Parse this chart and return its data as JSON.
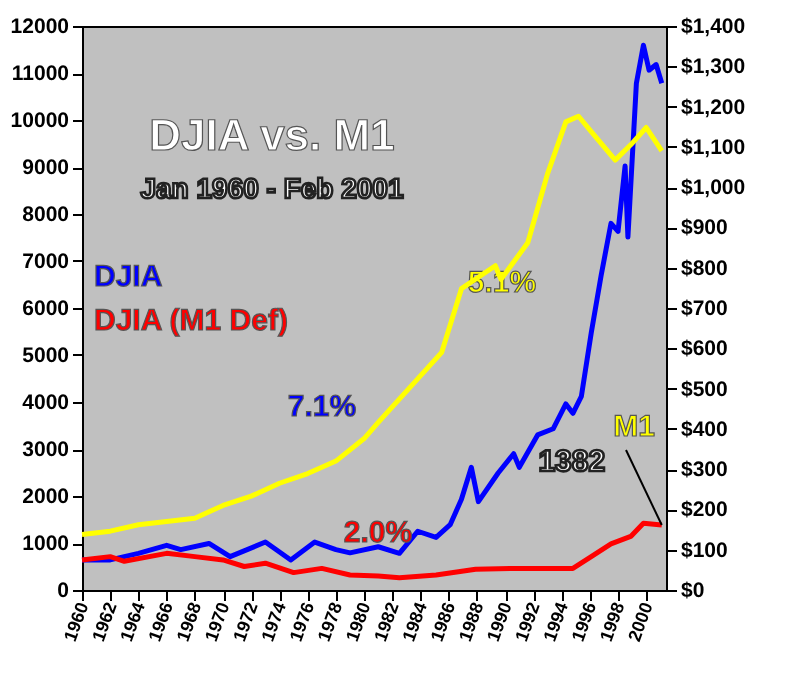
{
  "chart_data": {
    "type": "line",
    "title": "DJIA vs. M1",
    "subtitle": "Jan 1960 - Feb 2001",
    "xlim": [
      1960,
      2001.4
    ],
    "xticks": [
      1960,
      1962,
      1964,
      1966,
      1968,
      1970,
      1972,
      1974,
      1976,
      1978,
      1980,
      1982,
      1984,
      1986,
      1988,
      1990,
      1992,
      1994,
      1996,
      1998,
      2000
    ],
    "ylim": [
      0,
      12000
    ],
    "yticks": [
      0,
      1000,
      2000,
      3000,
      4000,
      5000,
      6000,
      7000,
      8000,
      9000,
      10000,
      11000,
      12000
    ],
    "y2lim": [
      0,
      1400
    ],
    "y2ticks": [
      {
        "value": 0,
        "label": "$0"
      },
      {
        "value": 100,
        "label": "$100"
      },
      {
        "value": 200,
        "label": "$200"
      },
      {
        "value": 300,
        "label": "$300"
      },
      {
        "value": 400,
        "label": "$400"
      },
      {
        "value": 500,
        "label": "$500"
      },
      {
        "value": 600,
        "label": "$600"
      },
      {
        "value": 700,
        "label": "$700"
      },
      {
        "value": 800,
        "label": "$800"
      },
      {
        "value": 900,
        "label": "$900"
      },
      {
        "value": 1000,
        "label": "$1,000"
      },
      {
        "value": 1100,
        "label": "$1,100"
      },
      {
        "value": 1200,
        "label": "$1,200"
      },
      {
        "value": 1300,
        "label": "$1,300"
      },
      {
        "value": 1400,
        "label": "$1,400"
      }
    ],
    "grid": false,
    "legend": "left",
    "marker": "none",
    "line_style": "solid",
    "series": [
      {
        "name": "DJIA",
        "color": "#0000ff",
        "x": [
          1960,
          1962,
          1964,
          1966,
          1967,
          1969,
          1970.5,
          1973,
          1974.8,
          1976.5,
          1978,
          1979,
          1981,
          1982.5,
          1983.8,
          1985.1,
          1986.1,
          1986.9,
          1987.6,
          1988.1,
          1989.5,
          1990.6,
          1991,
          1992.3,
          1993.4,
          1994.3,
          1994.8,
          1995.4,
          1996.1,
          1996.8,
          1997.5,
          1998,
          1998.5,
          1998.7,
          1999.3,
          1999.8,
          2000.2,
          2000.7,
          2001.1
        ],
        "values": [
          640,
          640,
          780,
          950,
          860,
          990,
          710,
          1020,
          640,
          1020,
          860,
          790,
          920,
          780,
          1250,
          1120,
          1390,
          1930,
          2610,
          1880,
          2490,
          2900,
          2610,
          3300,
          3430,
          3960,
          3760,
          4120,
          5470,
          6690,
          7800,
          7630,
          9020,
          7510,
          10780,
          11590,
          11060,
          11180,
          10780
        ]
      },
      {
        "name": "DJIA (M1 Def)",
        "color": "#ff0000",
        "x": [
          1960,
          1962,
          1963,
          1966,
          1968,
          1970,
          1971.5,
          1973,
          1975,
          1977,
          1979,
          1981,
          1982.5,
          1985.1,
          1987.9,
          1991,
          1994.8,
          1996.1,
          1997.5,
          1998.9,
          1999.8,
          2001.1
        ],
        "values": [
          640,
          710,
          610,
          780,
          710,
          640,
          500,
          570,
          370,
          460,
          320,
          300,
          260,
          320,
          440,
          460,
          460,
          710,
          980,
          1140,
          1420,
          1382
        ]
      },
      {
        "name": "M1",
        "color": "#ffff00",
        "axis": "y2",
        "x": [
          1960,
          1962,
          1964,
          1966,
          1968,
          1970,
          1972,
          1974,
          1976,
          1978,
          1980,
          1981,
          1985.5,
          1986.9,
          1989.3,
          1989.7,
          1991.6,
          1993,
          1994.3,
          1995.2,
          1996.1,
          1997.8,
          1998.9,
          2000,
          2001.1
        ],
        "values": [
          138,
          146,
          162,
          170,
          178,
          210,
          233,
          265,
          289,
          320,
          376,
          416,
          590,
          748,
          805,
          771,
          862,
          1033,
          1162,
          1176,
          1138,
          1067,
          1105,
          1148,
          1090
        ]
      }
    ],
    "annotations": [
      "5.1%",
      "7.1%",
      "2.0%",
      {
        "text": "1382",
        "x": 2001.1,
        "y": 1382
      }
    ]
  }
}
